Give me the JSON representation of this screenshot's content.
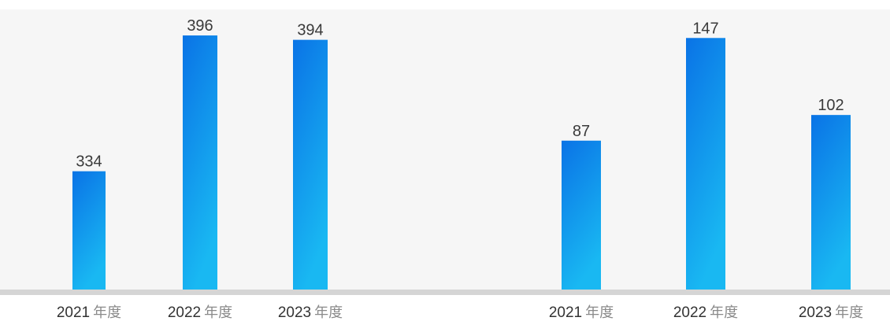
{
  "chart_data": [
    {
      "type": "bar",
      "categories": [
        "2021",
        "2022",
        "2023"
      ],
      "category_suffix": "年度",
      "values": [
        334,
        396,
        394
      ],
      "ylim": [
        280,
        405
      ],
      "grid": false,
      "legend": "none",
      "bar_color_top": "#0a73e6",
      "bar_color_bottom": "#19b8f2"
    },
    {
      "type": "bar",
      "categories": [
        "2021",
        "2022",
        "2023"
      ],
      "category_suffix": "年度",
      "values": [
        87,
        147,
        102
      ],
      "ylim": [
        0,
        160
      ],
      "grid": false,
      "legend": "none",
      "bar_color_top": "#0a73e6",
      "bar_color_bottom": "#19b8f2"
    }
  ],
  "colors": {
    "background": "#f6f6f6",
    "baseline": "#d5d5d5"
  }
}
